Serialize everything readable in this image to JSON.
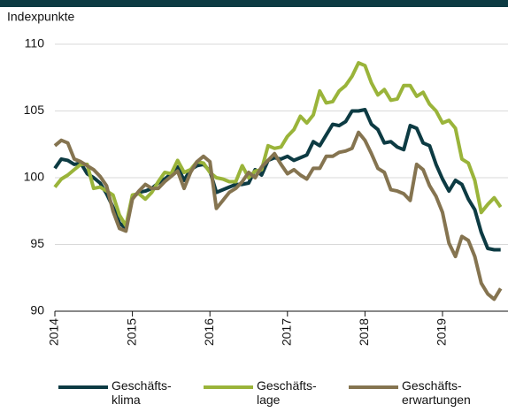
{
  "chart_data": {
    "type": "line",
    "y_label": "Indexpunkte",
    "categories": [
      "2014",
      null,
      null,
      null,
      null,
      null,
      null,
      null,
      null,
      null,
      null,
      null,
      "2015",
      null,
      null,
      null,
      null,
      null,
      null,
      null,
      null,
      null,
      null,
      null,
      "2016",
      null,
      null,
      null,
      null,
      null,
      null,
      null,
      null,
      null,
      null,
      null,
      "2017",
      null,
      null,
      null,
      null,
      null,
      null,
      null,
      null,
      null,
      null,
      null,
      "2018",
      null,
      null,
      null,
      null,
      null,
      null,
      null,
      null,
      null,
      null,
      null,
      "2019",
      null,
      null,
      null,
      null,
      null,
      null,
      null,
      null,
      null
    ],
    "ylim": [
      90,
      110
    ],
    "yticks": [
      90,
      95,
      100,
      105,
      110
    ],
    "grid": true,
    "series": [
      {
        "name": "Geschäfts-\nklima",
        "color": "#0d3b43",
        "values": [
          100.7,
          101.4,
          101.3,
          101.0,
          101.1,
          100.3,
          100.0,
          99.6,
          98.8,
          97.8,
          96.6,
          96.2,
          98.5,
          98.9,
          99.0,
          99.2,
          99.6,
          99.9,
          100.3,
          100.8,
          99.8,
          100.6,
          100.9,
          101.0,
          100.5,
          98.9,
          99.1,
          99.3,
          99.5,
          99.5,
          99.6,
          100.6,
          100.2,
          101.3,
          101.5,
          101.4,
          101.6,
          101.3,
          101.5,
          101.7,
          102.7,
          102.4,
          103.2,
          104.0,
          103.9,
          104.2,
          105.0,
          105.0,
          105.1,
          104.0,
          103.6,
          102.6,
          102.7,
          102.3,
          102.1,
          103.9,
          103.7,
          102.6,
          102.4,
          101.0,
          99.9,
          99.0,
          99.8,
          99.5,
          98.4,
          97.6,
          95.9,
          94.7,
          94.6,
          94.6
        ]
      },
      {
        "name": "Geschäfts-\nlage",
        "color": "#9ab43a",
        "values": [
          99.3,
          99.9,
          100.2,
          100.6,
          101.0,
          101.0,
          99.2,
          99.3,
          99.0,
          98.7,
          97.2,
          96.4,
          98.7,
          98.8,
          98.4,
          98.9,
          99.7,
          100.4,
          100.3,
          101.3,
          100.4,
          100.6,
          101.2,
          101.1,
          100.4,
          100.0,
          99.9,
          99.7,
          99.7,
          100.9,
          100.0,
          100.5,
          100.6,
          102.4,
          102.2,
          102.3,
          103.1,
          103.6,
          104.6,
          104.1,
          104.7,
          106.5,
          105.6,
          105.7,
          106.5,
          106.9,
          107.6,
          108.6,
          108.4,
          107.1,
          106.2,
          106.6,
          105.8,
          105.9,
          106.9,
          106.9,
          106.1,
          106.4,
          105.5,
          105.0,
          104.1,
          104.3,
          103.7,
          101.4,
          101.1,
          99.8,
          97.4,
          98.0,
          98.5,
          97.8
        ]
      },
      {
        "name": "Geschäfts-\nerwartungen",
        "color": "#857450",
        "values": [
          102.4,
          102.8,
          102.6,
          101.4,
          101.2,
          100.9,
          100.6,
          100.1,
          99.4,
          97.5,
          96.2,
          96.0,
          98.4,
          99.0,
          99.5,
          99.2,
          99.2,
          99.7,
          100.1,
          100.5,
          99.2,
          100.4,
          101.2,
          101.6,
          101.2,
          97.7,
          98.3,
          98.9,
          99.2,
          99.7,
          100.4,
          100.0,
          100.8,
          101.3,
          101.8,
          101.0,
          100.3,
          100.6,
          100.2,
          99.9,
          100.7,
          100.7,
          101.6,
          101.6,
          101.9,
          102.0,
          102.2,
          103.4,
          102.8,
          101.8,
          100.7,
          100.4,
          99.1,
          99.0,
          98.8,
          98.3,
          101.0,
          100.6,
          99.4,
          98.6,
          97.4,
          95.1,
          94.1,
          95.6,
          95.3,
          94.1,
          92.1,
          91.3,
          90.9,
          91.7
        ]
      }
    ]
  }
}
